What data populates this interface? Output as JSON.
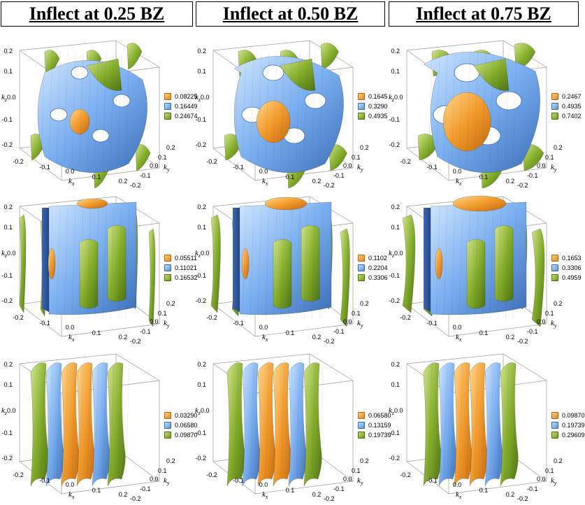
{
  "headers": [
    "Inflect at 0.25 BZ",
    "Inflect at 0.50 BZ",
    "Inflect at 0.75 BZ"
  ],
  "axes": {
    "kx": "k",
    "kx_sub": "x",
    "ky": "k",
    "ky_sub": "y",
    "kz": "k",
    "kz_sub": "z",
    "ticks": [
      "-0.2",
      "-0.1",
      "0.0",
      "0.1",
      "0.2"
    ]
  },
  "surface_colors": {
    "orange": "#f09a2c",
    "blue": "#6fa7ea",
    "green": "#7ea82a"
  },
  "legends": [
    [
      "0.08225",
      "0.16449",
      "0.24674"
    ],
    [
      "0.1645",
      "0.3290",
      "0.4935"
    ],
    [
      "0.2467",
      "0.4935",
      "0.7402"
    ],
    [
      "0.05511",
      "0.11021",
      "0.16532"
    ],
    [
      "0.1102",
      "0.2204",
      "0.3306"
    ],
    [
      "0.1653",
      "0.3306",
      "0.4959"
    ],
    [
      "0.03290",
      "0.06580",
      "0.09870"
    ],
    [
      "0.06580",
      "0.13159",
      "0.19739"
    ],
    [
      "0.09870",
      "0.19739",
      "0.29609"
    ]
  ]
}
